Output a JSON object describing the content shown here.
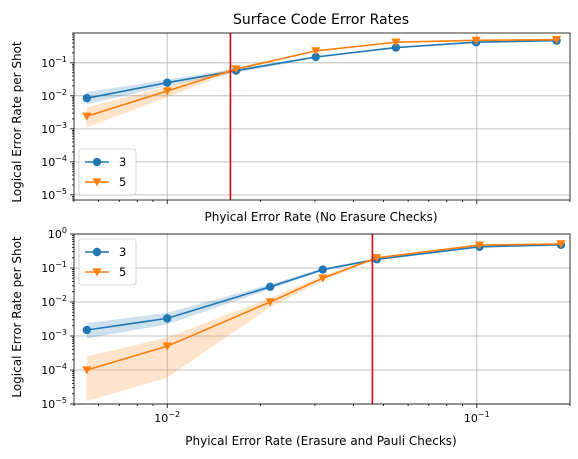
{
  "chart_data": [
    {
      "type": "line",
      "title": "Surface Code Error Rates",
      "xlabel": "Phyical Error Rate (No Erasure Checks)",
      "ylabel": "Logical Error Rate per Shot",
      "xscale": "log",
      "yscale": "log",
      "xlim": [
        0.005,
        0.2
      ],
      "ylim": [
        7e-06,
        0.8
      ],
      "yticks": [
        "10^{-5}",
        "10^{-4}",
        "10^{-3}",
        "10^{-2}",
        "10^{-1}"
      ],
      "xticks_shown": false,
      "grid": true,
      "legend": "lower-left",
      "threshold_x": 0.016,
      "threshold_color": "#e8000b",
      "series": [
        {
          "name": "3",
          "color": "#1f77b4",
          "marker": "circle",
          "x": [
            0.0055,
            0.01,
            0.0167,
            0.0302,
            0.0548,
            0.0995,
            0.181
          ],
          "y": [
            0.0085,
            0.025,
            0.058,
            0.15,
            0.29,
            0.42,
            0.47
          ],
          "band_low": [
            0.0055,
            0.02,
            0.05,
            0.14,
            0.28,
            0.41,
            0.46
          ],
          "band_high": [
            0.013,
            0.031,
            0.066,
            0.16,
            0.3,
            0.43,
            0.48
          ]
        },
        {
          "name": "5",
          "color": "#ff7f0e",
          "marker": "triangle-down",
          "x": [
            0.0055,
            0.01,
            0.0167,
            0.0302,
            0.0548,
            0.0995,
            0.181
          ],
          "y": [
            0.0024,
            0.014,
            0.065,
            0.23,
            0.42,
            0.48,
            0.5
          ],
          "band_low": [
            0.0011,
            0.009,
            0.058,
            0.22,
            0.41,
            0.47,
            0.49
          ],
          "band_high": [
            0.0045,
            0.019,
            0.072,
            0.24,
            0.43,
            0.49,
            0.51
          ]
        }
      ]
    },
    {
      "type": "line",
      "xlabel": "Phyical Error Rate (Erasure and Pauli Checks)",
      "ylabel": "Logical Error Rate per Shot",
      "xscale": "log",
      "yscale": "log",
      "xlim": [
        0.005,
        0.2
      ],
      "ylim": [
        1e-05,
        1
      ],
      "yticks": [
        "10^{-5}",
        "10^{-4}",
        "10^{-3}",
        "10^{-2}",
        "10^{-1}",
        "10^{0}"
      ],
      "xticks": [
        "10^{-2}",
        "10^{-1}"
      ],
      "grid": true,
      "legend": "upper-left",
      "threshold_x": 0.046,
      "threshold_color": "#e8000b",
      "series": [
        {
          "name": "3",
          "color": "#1f77b4",
          "marker": "circle",
          "x": [
            0.0055,
            0.01,
            0.0215,
            0.0318,
            0.0475,
            0.102,
            0.187
          ],
          "y": [
            0.0015,
            0.0033,
            0.028,
            0.09,
            0.18,
            0.42,
            0.48
          ],
          "band_low": [
            0.00085,
            0.0022,
            0.024,
            0.082,
            0.17,
            0.4,
            0.47
          ],
          "band_high": [
            0.0024,
            0.0048,
            0.033,
            0.1,
            0.19,
            0.44,
            0.49
          ]
        },
        {
          "name": "5",
          "color": "#ff7f0e",
          "marker": "triangle-down",
          "x": [
            0.0055,
            0.01,
            0.0215,
            0.0318,
            0.0475,
            0.102,
            0.187
          ],
          "y": [
            0.0001,
            0.0005,
            0.01,
            0.05,
            0.2,
            0.47,
            0.51
          ],
          "band_low": [
            1.2e-05,
            6e-05,
            0.007,
            0.042,
            0.19,
            0.46,
            0.5
          ],
          "band_high": [
            0.00025,
            0.0009,
            0.013,
            0.058,
            0.21,
            0.48,
            0.52
          ]
        }
      ]
    }
  ]
}
